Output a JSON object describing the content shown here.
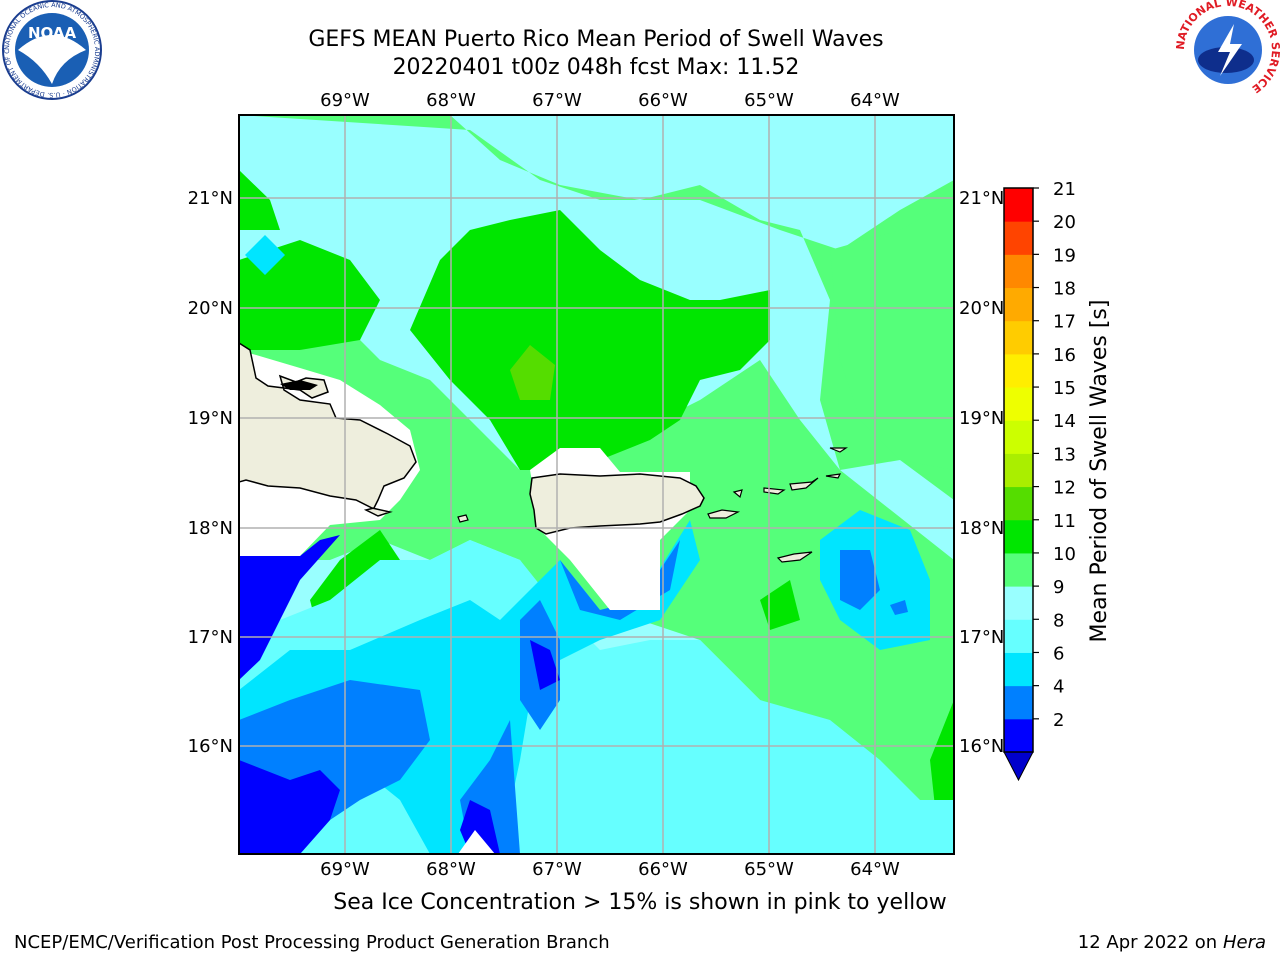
{
  "title_line1": "GEFS MEAN Puerto Rico Mean Period of Swell Waves",
  "title_line2": "20220401 t00z 048h fcst   Max: 11.52",
  "lon_labels": [
    "69°W",
    "68°W",
    "67°W",
    "66°W",
    "65°W",
    "64°W"
  ],
  "lat_labels": [
    "21°N",
    "20°N",
    "19°N",
    "18°N",
    "17°N",
    "16°N"
  ],
  "colorbar": {
    "label": "Mean Period of Swell Waves [s]",
    "ticks": [
      "21",
      "20",
      "19",
      "18",
      "17",
      "16",
      "15",
      "14",
      "13",
      "12",
      "11",
      "10",
      "9",
      "8",
      "6",
      "4",
      "2"
    ],
    "levels": [
      2,
      4,
      6,
      8,
      9,
      10,
      11,
      12,
      13,
      14,
      15,
      16,
      17,
      18,
      19,
      20,
      21
    ],
    "colors": [
      "#0000ff",
      "#0080ff",
      "#00e5ff",
      "#66ffff",
      "#99ffff",
      "#55ff7a",
      "#00e600",
      "#55dd00",
      "#aaee00",
      "#ccff00",
      "#eeff00",
      "#ffee00",
      "#ffcc00",
      "#ffaa00",
      "#ff8800",
      "#ff4400",
      "#ff0000"
    ],
    "extend_color": "#0000cc"
  },
  "land_color": "#eeeedd",
  "logos": {
    "noaa_text": "NOAA",
    "noaa_ring": "NATIONAL OCEANIC AND ATMOSPHERIC ADMINISTRATION · U.S. DEPARTMENT OF COMMERCE",
    "nws_ring": "NATIONAL WEATHER SERVICE"
  },
  "footer_note": "Sea Ice Concentration > 15% is shown in pink to yellow",
  "footer_left": "NCEP/EMC/Verification Post Processing Product Generation Branch",
  "footer_date": "12 Apr 2022 on ",
  "footer_host": "Hera"
}
